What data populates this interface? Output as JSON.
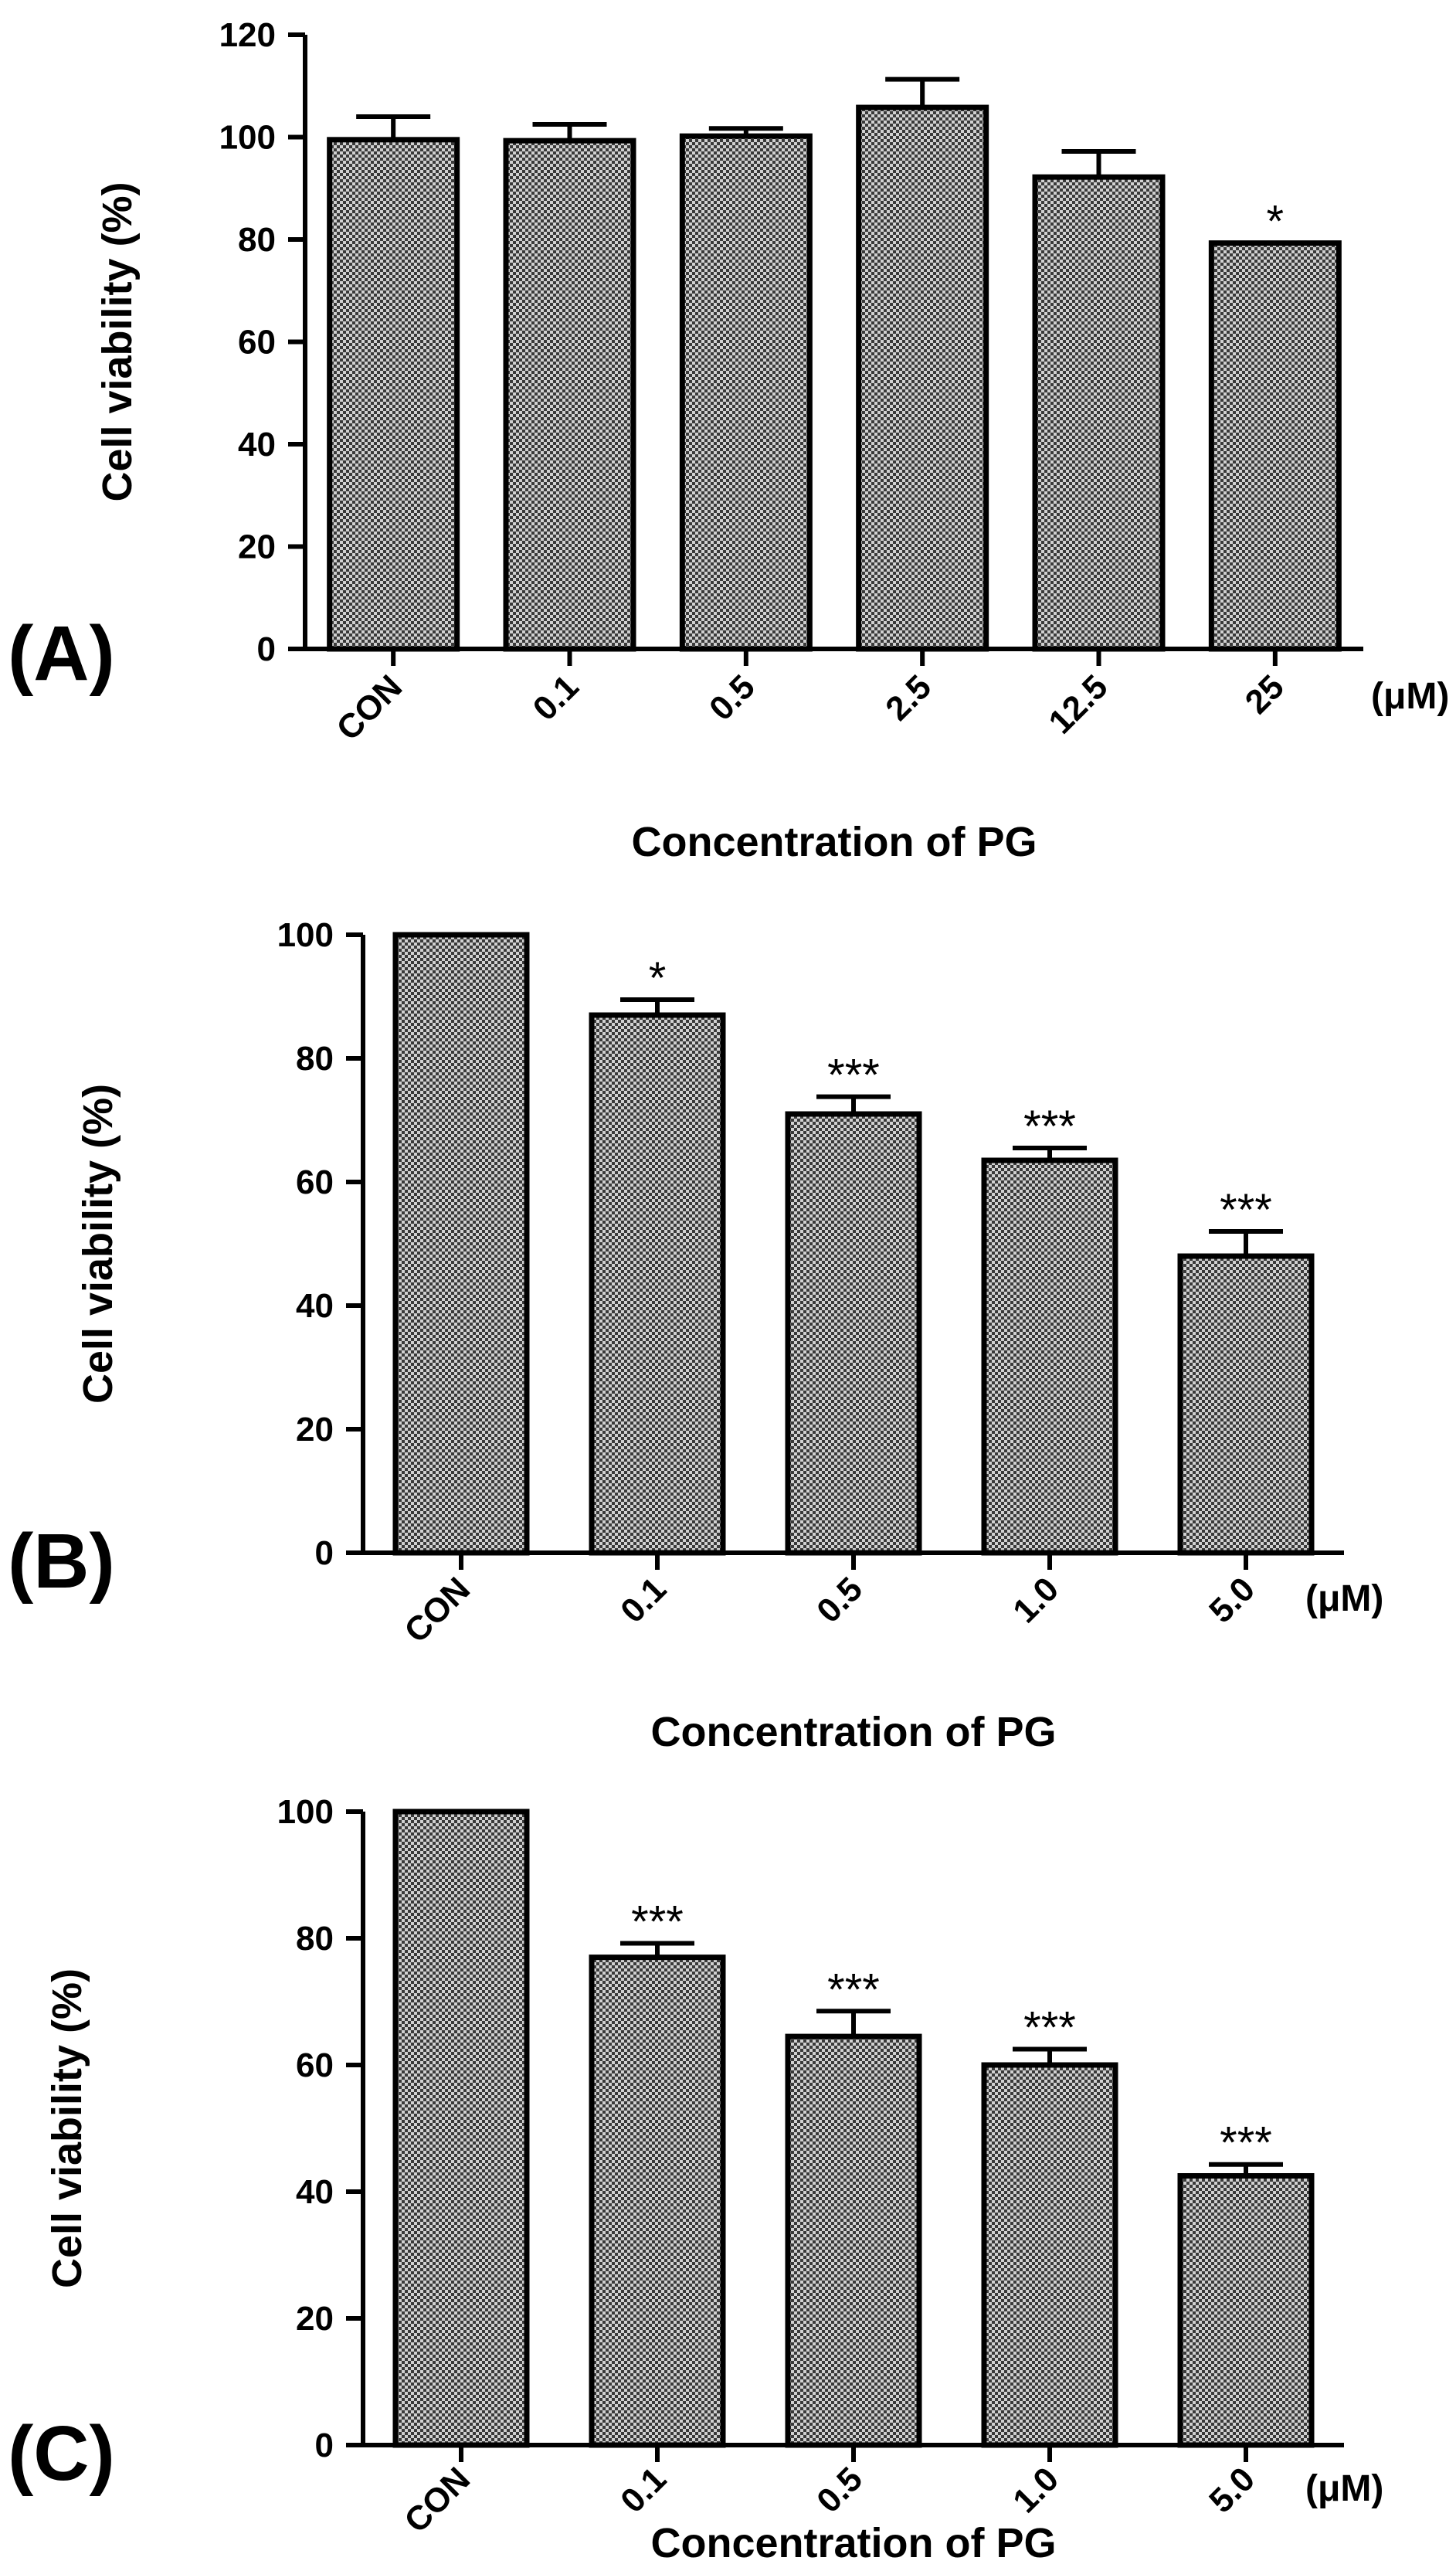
{
  "figure_colors": {
    "bar_pattern_dark": "#3a3a3a",
    "bar_pattern_light": "#d0d0d0",
    "ink": "#000000"
  },
  "chart_data": [
    {
      "type": "bar",
      "panel_label": "(A)",
      "title": "",
      "xlabel": "Concentration of PG",
      "ylabel": "Cell viability (%)",
      "unit": "(μM)",
      "ylim": [
        0,
        120
      ],
      "yticks": [
        "0",
        "20",
        "40",
        "60",
        "80",
        "100",
        "120"
      ],
      "categories": [
        "CON",
        "0.1",
        "0.5",
        "2.5",
        "12.5",
        "25"
      ],
      "values": [
        99.5,
        99.3,
        100.2,
        105.8,
        92.2,
        79.3
      ],
      "errors": [
        4.5,
        3.2,
        1.5,
        5.5,
        5.0,
        0
      ],
      "significance": [
        "",
        "",
        "",
        "",
        "",
        "*"
      ]
    },
    {
      "type": "bar",
      "panel_label": "(B)",
      "title": "",
      "xlabel": "Concentration of PG",
      "ylabel": "Cell viability (%)",
      "unit": "(μM)",
      "ylim": [
        0,
        100
      ],
      "yticks": [
        "0",
        "20",
        "40",
        "60",
        "80",
        "100"
      ],
      "categories": [
        "CON",
        "0.1",
        "0.5",
        "1.0",
        "5.0"
      ],
      "values": [
        100,
        87.0,
        71.0,
        63.5,
        48.0
      ],
      "errors": [
        0,
        2.5,
        2.8,
        2.0,
        4.0
      ],
      "significance": [
        "",
        "*",
        "***",
        "***",
        "***"
      ]
    },
    {
      "type": "bar",
      "panel_label": "(C)",
      "title": "",
      "xlabel": "Concentration of PG",
      "ylabel": "Cell viability (%)",
      "unit": "(μM)",
      "ylim": [
        0,
        100
      ],
      "yticks": [
        "0",
        "20",
        "40",
        "60",
        "80",
        "100"
      ],
      "categories": [
        "CON",
        "0.1",
        "0.5",
        "1.0",
        "5.0"
      ],
      "values": [
        100,
        77.0,
        64.5,
        60.0,
        42.5
      ],
      "errors": [
        0,
        2.2,
        4.0,
        2.5,
        1.8
      ],
      "significance": [
        "",
        "***",
        "***",
        "***",
        "***"
      ]
    }
  ]
}
